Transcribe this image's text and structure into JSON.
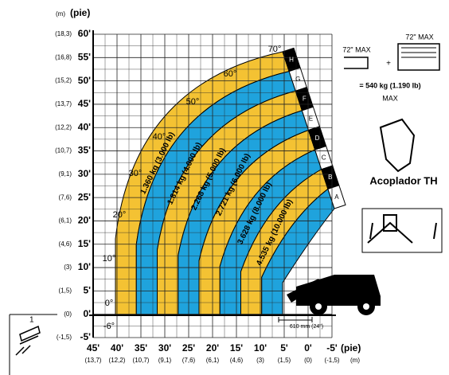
{
  "units": {
    "y_m": "(m)",
    "y_ft": "(pie)",
    "x_ft": "(pie)",
    "x_m": "(m)"
  },
  "y_ticks": [
    {
      "ft": "60'",
      "m": "(18,3)"
    },
    {
      "ft": "55'",
      "m": "(16,8)"
    },
    {
      "ft": "50'",
      "m": "(15,2)"
    },
    {
      "ft": "45'",
      "m": "(13,7)"
    },
    {
      "ft": "40'",
      "m": "(12,2)"
    },
    {
      "ft": "35'",
      "m": "(10,7)"
    },
    {
      "ft": "30'",
      "m": "(9,1)"
    },
    {
      "ft": "25'",
      "m": "(7,6)"
    },
    {
      "ft": "20'",
      "m": "(6,1)"
    },
    {
      "ft": "15'",
      "m": "(4,6)"
    },
    {
      "ft": "10'",
      "m": "(3)"
    },
    {
      "ft": "5'",
      "m": "(1,5)"
    },
    {
      "ft": "0'",
      "m": "(0)"
    },
    {
      "ft": "-5'",
      "m": "(-1,5)"
    }
  ],
  "x_ticks": [
    {
      "ft": "45'",
      "m": "(13,7)"
    },
    {
      "ft": "40'",
      "m": "(12,2)"
    },
    {
      "ft": "35'",
      "m": "(10,7)"
    },
    {
      "ft": "30'",
      "m": "(9,1)"
    },
    {
      "ft": "25'",
      "m": "(7,6)"
    },
    {
      "ft": "20'",
      "m": "(6,1)"
    },
    {
      "ft": "15'",
      "m": "(4,6)"
    },
    {
      "ft": "10'",
      "m": "(3)"
    },
    {
      "ft": "5'",
      "m": "(1,5)"
    },
    {
      "ft": "0'",
      "m": "(0)"
    },
    {
      "ft": "-5'",
      "m": "(-1,5)"
    }
  ],
  "angles": [
    "70°",
    "60°",
    "50°",
    "40°",
    "30°",
    "20°",
    "10°",
    "0°",
    "-6°"
  ],
  "zones": [
    "1.360 kg (3.000 lb)",
    "1.814 kg (4.000 lb)",
    "2.268 kg (5.000 lb)",
    "2.721 kg (6.000 lb)",
    "3.628 kg (8.000 lb)",
    "4.535 kg (10.000 lb)"
  ],
  "zone_letters": [
    "H",
    "G",
    "F",
    "E",
    "D",
    "C",
    "B",
    "A"
  ],
  "attachment": {
    "width_1": "72\" MAX",
    "width_2": "72\" MAX",
    "plus": "+",
    "capacity": "= 540 kg (1.190 lb)",
    "max": "MAX",
    "coupler": "Acoplador TH"
  },
  "clearance": "610 mm (24\")",
  "corner_number": "1"
}
